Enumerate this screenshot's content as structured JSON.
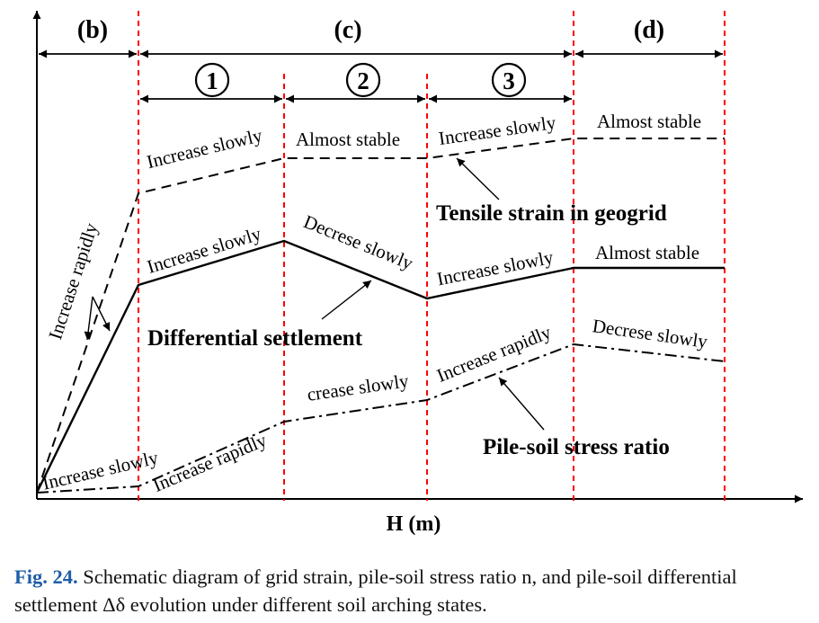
{
  "colors": {
    "ink": "#000000",
    "divider": "#ff0000",
    "caption_label": "#1f5ea8"
  },
  "diagram": {
    "stages": {
      "b": "(b)",
      "c": "(c)",
      "d": "(d)"
    },
    "sub_stages": {
      "s1": "1",
      "s2": "2",
      "s3": "3"
    },
    "x_axis_label": "H (m)",
    "curves": {
      "tensile_strain": "Tensile strain in geogrid",
      "differential_settlement": "Differential settlement",
      "pile_soil_ratio": "Pile-soil stress ratio"
    },
    "annotations": {
      "increase_rapidly_b": "Increase rapidly",
      "strain_c1": "Increase slowly",
      "strain_c2": "Almost stable",
      "strain_c3": "Increase slowly",
      "strain_d": "Almost stable",
      "settle_c1": "Increase slowly",
      "settle_c2": "Decrese slowly",
      "settle_c3": "Increase slowly",
      "settle_d": "Almost stable",
      "ratio_b": "Increase slowly",
      "ratio_c1": "Increase rapidly",
      "ratio_c2": "crease slowly",
      "ratio_c3": "Increase rapidly",
      "ratio_d": "Decrese slowly"
    }
  },
  "caption": {
    "label": "Fig. 24.",
    "text": "Schematic diagram of grid strain, pile-soil stress ratio n, and pile-soil differential settlement Δδ evolution under different soil arching states."
  }
}
